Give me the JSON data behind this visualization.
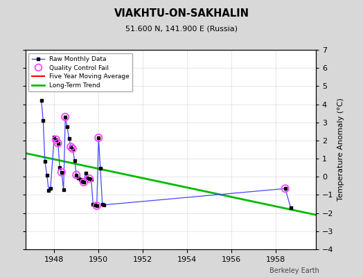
{
  "title": "VIAKHTU-ON-SAKHALIN",
  "subtitle": "51.600 N, 141.900 E (Russia)",
  "ylabel": "Temperature Anomaly (°C)",
  "credit": "Berkeley Earth",
  "xlim": [
    1946.7,
    1959.8
  ],
  "ylim": [
    -4,
    7
  ],
  "yticks": [
    -4,
    -3,
    -2,
    -1,
    0,
    1,
    2,
    3,
    4,
    5,
    6,
    7
  ],
  "xticks": [
    1948,
    1950,
    1952,
    1954,
    1956,
    1958
  ],
  "bg_color": "#d8d8d8",
  "plot_bg_color": "#ffffff",
  "raw_data_x": [
    1947.42,
    1947.5,
    1947.58,
    1947.67,
    1947.75,
    1947.83,
    1948.0,
    1948.08,
    1948.17,
    1948.25,
    1948.33,
    1948.42,
    1948.5,
    1948.58,
    1948.67,
    1948.75,
    1948.83,
    1948.92,
    1949.0,
    1949.08,
    1949.17,
    1949.25,
    1949.33,
    1949.42,
    1949.5,
    1949.58,
    1949.67,
    1949.75,
    1949.83,
    1949.92,
    1950.0,
    1950.08,
    1950.17,
    1950.25,
    1958.42,
    1958.67
  ],
  "raw_data_y": [
    4.2,
    3.1,
    0.85,
    0.1,
    -0.75,
    -0.65,
    2.2,
    2.05,
    1.85,
    0.5,
    0.25,
    -0.7,
    3.3,
    2.75,
    2.1,
    1.65,
    1.55,
    0.9,
    0.1,
    -0.05,
    -0.15,
    -0.25,
    -0.3,
    0.2,
    -0.05,
    -0.1,
    -0.15,
    -1.5,
    -1.55,
    -1.6,
    2.15,
    0.45,
    -1.5,
    -1.55,
    -0.65,
    -1.72
  ],
  "qc_fail_x": [
    1948.08,
    1948.17,
    1948.33,
    1948.5,
    1948.75,
    1948.83,
    1949.0,
    1949.33,
    1949.58,
    1949.92,
    1950.0,
    1958.42
  ],
  "qc_fail_y": [
    2.05,
    1.85,
    0.25,
    3.3,
    1.65,
    1.55,
    0.1,
    -0.3,
    -0.1,
    -1.6,
    2.15,
    -0.65
  ],
  "trend_x": [
    1946.7,
    1959.8
  ],
  "trend_y": [
    1.3,
    -2.1
  ],
  "line_color": "#4444ff",
  "marker_color": "#000000",
  "qc_color": "#ff44ff",
  "trend_color": "#00bb00",
  "moving_avg_color": "#ff0000",
  "grid_color": "#cccccc",
  "grid_alpha": 0.7
}
